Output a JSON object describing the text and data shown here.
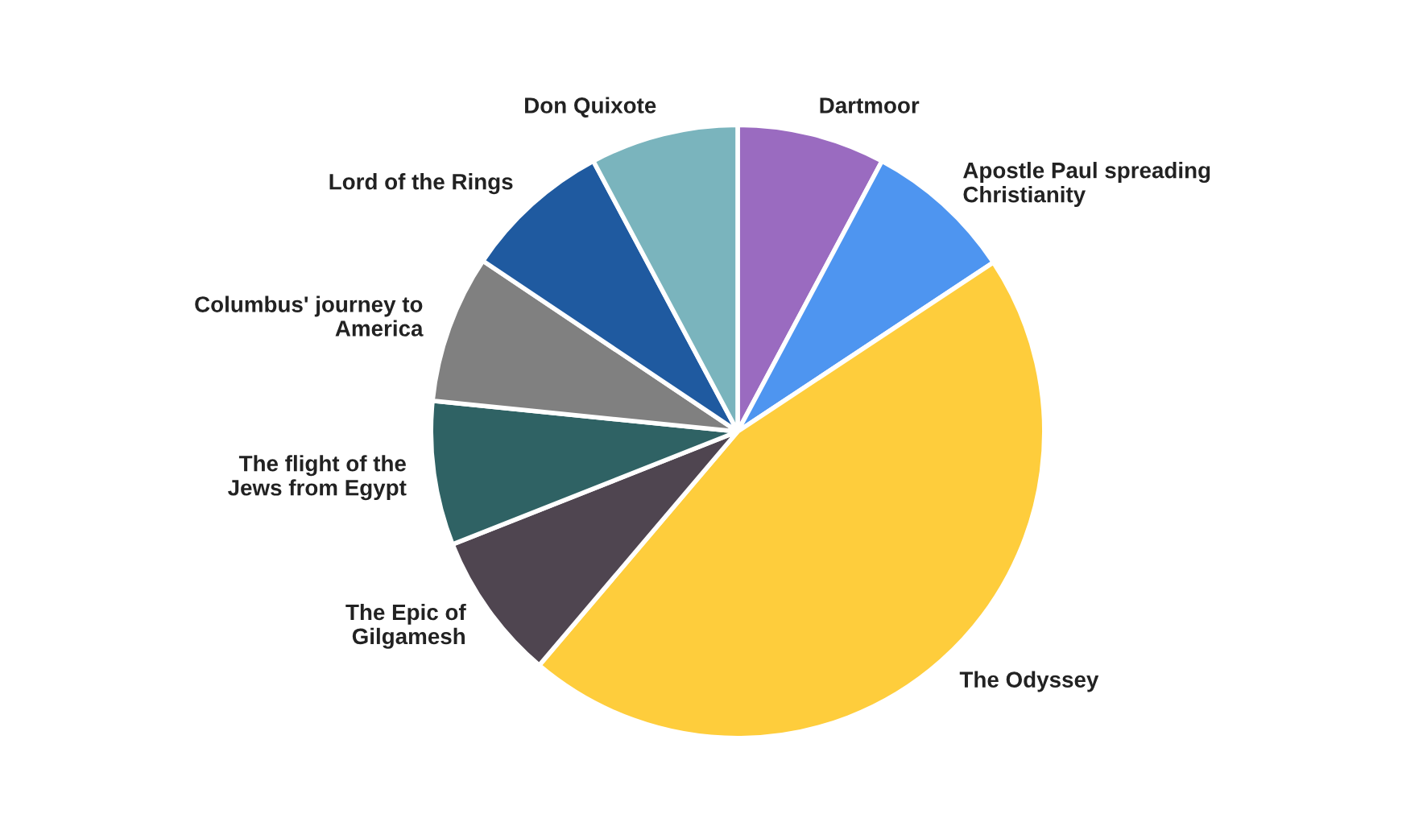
{
  "chart_data": {
    "type": "pie",
    "categories": [
      "Dartmoor",
      "Apostle Paul spreading\nChristianity",
      "The Odyssey",
      "The Epic of\nGilgamesh",
      "The flight of the\nJews from Egypt",
      "Columbus' journey to\nAmerica",
      "Lord of the Rings",
      "Don Quixote"
    ],
    "values": [
      7.8,
      7.9,
      45.5,
      7.8,
      7.6,
      7.8,
      7.8,
      7.8
    ],
    "colors": [
      "#9a6bc0",
      "#4e95f0",
      "#fecd3c",
      "#4f4550",
      "#2f6264",
      "#808080",
      "#1f5aa0",
      "#7ab4bd"
    ],
    "legend": false
  }
}
